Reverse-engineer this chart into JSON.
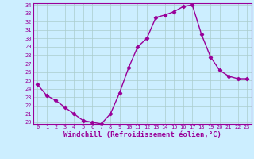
{
  "x": [
    0,
    1,
    2,
    3,
    4,
    5,
    6,
    7,
    8,
    9,
    10,
    11,
    12,
    13,
    14,
    15,
    16,
    17,
    18,
    19,
    20,
    21,
    22,
    23
  ],
  "y": [
    24.5,
    23.2,
    22.6,
    21.8,
    21.0,
    20.2,
    20.0,
    19.8,
    21.0,
    23.5,
    26.5,
    29.0,
    30.0,
    32.5,
    32.8,
    33.2,
    33.8,
    34.0,
    30.5,
    27.8,
    26.2,
    25.5,
    25.2,
    25.2
  ],
  "line_color": "#990099",
  "marker": "D",
  "marker_size": 2.2,
  "background_color": "#cceeff",
  "grid_color": "#aacccc",
  "xlabel": "Windchill (Refroidissement éolien,°C)",
  "ylim": [
    20,
    34
  ],
  "xlim": [
    -0.5,
    23.5
  ],
  "yticks": [
    20,
    21,
    22,
    23,
    24,
    25,
    26,
    27,
    28,
    29,
    30,
    31,
    32,
    33,
    34
  ],
  "xticks": [
    0,
    1,
    2,
    3,
    4,
    5,
    6,
    7,
    8,
    9,
    10,
    11,
    12,
    13,
    14,
    15,
    16,
    17,
    18,
    19,
    20,
    21,
    22,
    23
  ],
  "tick_color": "#990099",
  "label_color": "#990099",
  "tick_fontsize": 5.0,
  "xlabel_fontsize": 6.5,
  "spine_color": "#990099",
  "linewidth": 1.0
}
